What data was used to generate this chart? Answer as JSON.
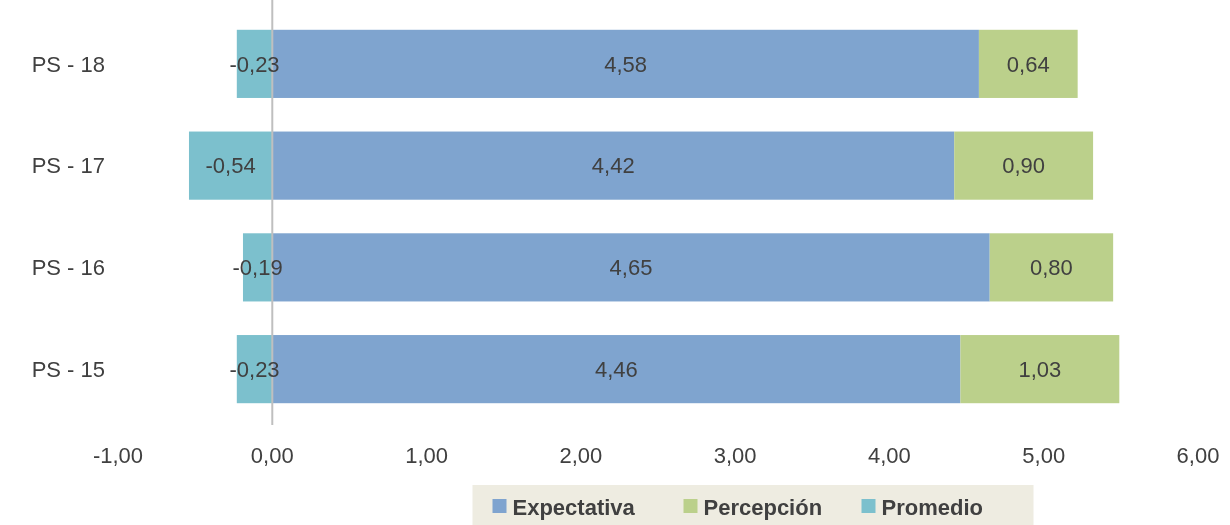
{
  "chart_data": {
    "type": "bar",
    "orientation": "horizontal",
    "stacked": true,
    "categories": [
      "PS - 18",
      "PS - 17",
      "PS - 16",
      "PS - 15"
    ],
    "series": [
      {
        "name": "Expectativa",
        "color": "#7fa4cf",
        "values": [
          4.58,
          4.42,
          4.65,
          4.46
        ],
        "value_labels": [
          "4,58",
          "4,42",
          "4,65",
          "4,46"
        ]
      },
      {
        "name": "Percepción",
        "color": "#bbd08b",
        "values": [
          0.64,
          0.9,
          0.8,
          1.03
        ],
        "value_labels": [
          "0,64",
          "0,90",
          "0,80",
          "1,03"
        ]
      },
      {
        "name": "Promedio",
        "color": "#7cc0cd",
        "values": [
          -0.23,
          -0.54,
          -0.19,
          -0.23
        ],
        "value_labels": [
          "-0,23",
          "-0,54",
          "-0,19",
          "-0,23"
        ]
      }
    ],
    "xlim": [
      -1,
      6
    ],
    "xticks": [
      {
        "value": -1,
        "label": "-1,00"
      },
      {
        "value": 0,
        "label": "0,00"
      },
      {
        "value": 1,
        "label": "1,00"
      },
      {
        "value": 2,
        "label": "2,00"
      },
      {
        "value": 3,
        "label": "3,00"
      },
      {
        "value": 4,
        "label": "4,00"
      },
      {
        "value": 5,
        "label": "5,00"
      },
      {
        "value": 6,
        "label": "6,00"
      }
    ],
    "legend": "bottom"
  }
}
